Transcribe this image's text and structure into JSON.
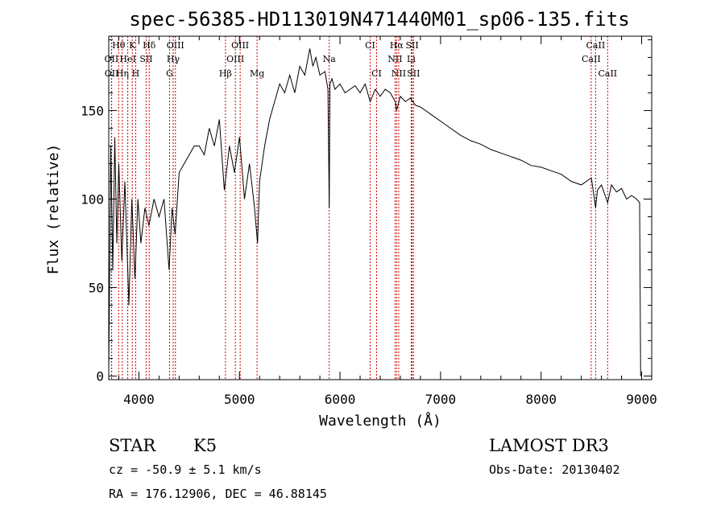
{
  "chart_data": {
    "type": "line",
    "title": "spec-56385-HD113019N471440M01_sp06-135.fits",
    "xlabel": "Wavelength (Å)",
    "ylabel": "Flux (relative)",
    "xlim": [
      3700,
      9100
    ],
    "ylim": [
      -2,
      192
    ],
    "xticks": [
      4000,
      5000,
      6000,
      7000,
      8000,
      9000
    ],
    "yticks": [
      0,
      50,
      100,
      150
    ],
    "series": [
      {
        "name": "flux",
        "x": [
          3700,
          3720,
          3740,
          3760,
          3780,
          3800,
          3830,
          3860,
          3900,
          3930,
          3960,
          3990,
          4020,
          4060,
          4100,
          4150,
          4200,
          4250,
          4300,
          4330,
          4360,
          4400,
          4450,
          4500,
          4550,
          4600,
          4650,
          4700,
          4750,
          4800,
          4850,
          4900,
          4950,
          5000,
          5050,
          5100,
          5150,
          5180,
          5200,
          5250,
          5300,
          5350,
          5400,
          5450,
          5500,
          5550,
          5600,
          5650,
          5700,
          5730,
          5760,
          5800,
          5850,
          5880,
          5893,
          5900,
          5920,
          5950,
          6000,
          6050,
          6100,
          6150,
          6200,
          6250,
          6300,
          6350,
          6400,
          6450,
          6500,
          6550,
          6563,
          6600,
          6650,
          6700,
          6750,
          6800,
          6850,
          6900,
          6950,
          7000,
          7100,
          7200,
          7300,
          7400,
          7500,
          7600,
          7700,
          7800,
          7900,
          8000,
          8100,
          8200,
          8300,
          8400,
          8500,
          8542,
          8560,
          8600,
          8662,
          8700,
          8750,
          8800,
          8850,
          8900,
          8950,
          8980,
          8990
        ],
        "values": [
          2,
          130,
          60,
          135,
          75,
          120,
          65,
          110,
          40,
          100,
          55,
          100,
          75,
          95,
          85,
          100,
          90,
          100,
          60,
          95,
          80,
          115,
          120,
          125,
          130,
          130,
          125,
          140,
          130,
          145,
          105,
          130,
          115,
          135,
          100,
          120,
          95,
          75,
          110,
          130,
          145,
          155,
          165,
          160,
          170,
          160,
          175,
          170,
          185,
          175,
          180,
          170,
          172,
          162,
          95,
          165,
          168,
          162,
          165,
          160,
          162,
          164,
          160,
          165,
          155,
          162,
          158,
          162,
          160,
          155,
          150,
          158,
          155,
          157,
          153,
          152,
          150,
          148,
          146,
          144,
          140,
          136,
          133,
          131,
          128,
          126,
          124,
          122,
          119,
          118,
          116,
          114,
          110,
          108,
          112,
          95,
          105,
          108,
          98,
          108,
          104,
          106,
          100,
          102,
          100,
          98,
          0
        ]
      }
    ],
    "lines": [
      {
        "name": "Hθ",
        "x": 3798,
        "row": 1
      },
      {
        "name": "OII",
        "x": 3727,
        "row": 2
      },
      {
        "name": "OII",
        "x": 3729,
        "row": 3
      },
      {
        "name": "K",
        "x": 3934,
        "row": 1
      },
      {
        "name": "HeI",
        "x": 3889,
        "row": 2
      },
      {
        "name": "Hη",
        "x": 3835,
        "row": 3
      },
      {
        "name": "Hδ",
        "x": 4102,
        "row": 1
      },
      {
        "name": "SII",
        "x": 4072,
        "row": 2
      },
      {
        "name": "H",
        "x": 3968,
        "row": 3
      },
      {
        "name": "OIII",
        "x": 4363,
        "row": 1
      },
      {
        "name": "Hγ",
        "x": 4341,
        "row": 2
      },
      {
        "name": "G",
        "x": 4305,
        "row": 3
      },
      {
        "name": "OIII",
        "x": 5007,
        "row": 1
      },
      {
        "name": "OIII",
        "x": 4959,
        "row": 2
      },
      {
        "name": "Hβ",
        "x": 4861,
        "row": 3
      },
      {
        "name": "Mg",
        "x": 5175,
        "row": 3
      },
      {
        "name": "Na",
        "x": 5893,
        "row": 2
      },
      {
        "name": "CI",
        "x": 6300,
        "row": 1
      },
      {
        "name": "CI",
        "x": 6364,
        "row": 3
      },
      {
        "name": "Hα",
        "x": 6563,
        "row": 1
      },
      {
        "name": "NII",
        "x": 6548,
        "row": 2
      },
      {
        "name": "NII",
        "x": 6584,
        "row": 3
      },
      {
        "name": "SII",
        "x": 6717,
        "row": 1
      },
      {
        "name": "Li",
        "x": 6708,
        "row": 2
      },
      {
        "name": "SII",
        "x": 6731,
        "row": 3
      },
      {
        "name": "CaII",
        "x": 8542,
        "row": 1
      },
      {
        "name": "CaII",
        "x": 8498,
        "row": 2
      },
      {
        "name": "CaII",
        "x": 8662,
        "row": 3
      }
    ]
  },
  "info": {
    "object_type": "STAR",
    "subclass": "K5",
    "survey": "LAMOST DR3",
    "cz": "cz = -50.9 ± 5.1 km/s",
    "obs_date": "Obs-Date: 20130402",
    "coords": "RA = 176.12906, DEC =  46.88145"
  },
  "colors": {
    "line_marker": "#cc0000",
    "spectrum": "#000000"
  }
}
